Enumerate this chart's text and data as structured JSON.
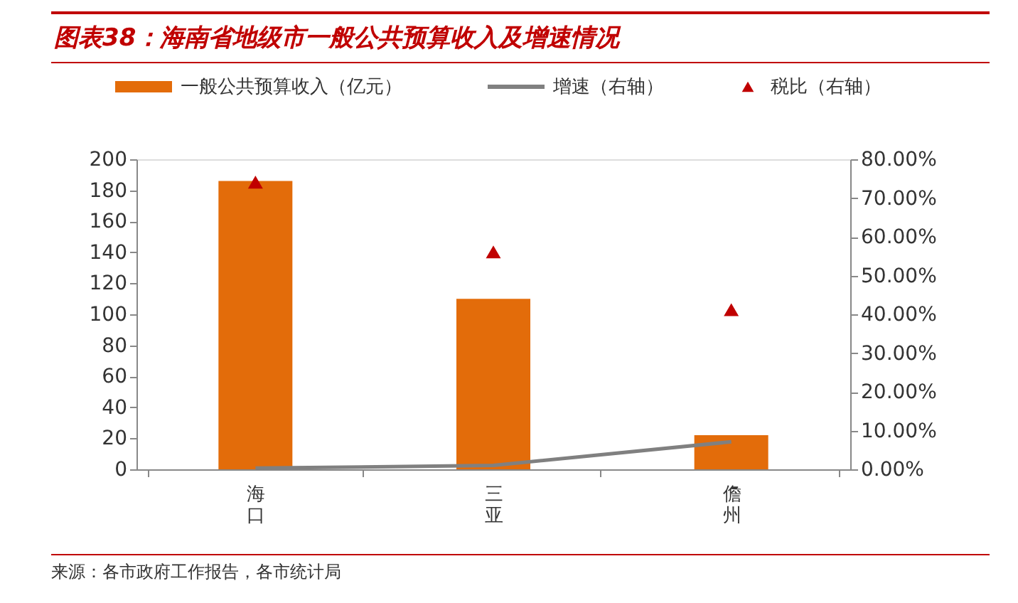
{
  "chart_data": {
    "type": "bar",
    "title": "图表38：海南省地级市一般公共预算收入及增速情况",
    "categories": [
      "海口",
      "三亚",
      "儋州"
    ],
    "series": [
      {
        "name": "一般公共预算收入（亿元）",
        "type": "bar",
        "color": "#e36c0a",
        "values": [
          186,
          110,
          22
        ]
      },
      {
        "name": "增速（右轴）",
        "type": "line",
        "axis": "y2",
        "color": "#808080",
        "marker": "none",
        "values": [
          0.3,
          1.0,
          7.1
        ]
      },
      {
        "name": "税比（右轴）",
        "type": "scatter",
        "axis": "y2",
        "color": "#c00000",
        "marker": "triangle",
        "values": [
          74.1,
          56.1,
          41.2
        ]
      }
    ],
    "ylim": [
      0,
      200
    ],
    "yticks": [
      0,
      20,
      40,
      60,
      80,
      100,
      120,
      140,
      160,
      180,
      200
    ],
    "y2lim": [
      0,
      80
    ],
    "y2ticks": [
      {
        "value": 0,
        "label": "0.00%"
      },
      {
        "value": 10,
        "label": "10.00%"
      },
      {
        "value": 20,
        "label": "20.00%"
      },
      {
        "value": 30,
        "label": "30.00%"
      },
      {
        "value": 40,
        "label": "40.00%"
      },
      {
        "value": 50,
        "label": "50.00%"
      },
      {
        "value": 60,
        "label": "60.00%"
      },
      {
        "value": 70,
        "label": "70.00%"
      },
      {
        "value": 80,
        "label": "80.00%"
      }
    ],
    "grid": false,
    "legend": "top",
    "annotations": [
      "来源：各市政府工作报告，各市统计局"
    ]
  }
}
